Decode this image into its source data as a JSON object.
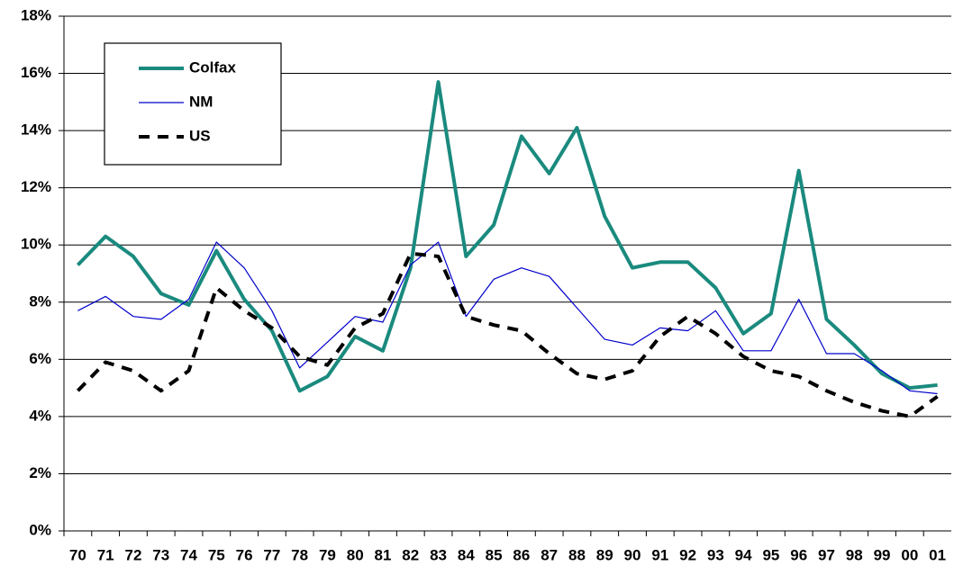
{
  "chart_data": {
    "type": "line",
    "categories": [
      "70",
      "71",
      "72",
      "73",
      "74",
      "75",
      "76",
      "77",
      "78",
      "79",
      "80",
      "81",
      "82",
      "83",
      "84",
      "85",
      "86",
      "87",
      "88",
      "89",
      "90",
      "91",
      "92",
      "93",
      "94",
      "95",
      "96",
      "97",
      "98",
      "99",
      "00",
      "01"
    ],
    "series": [
      {
        "name": "Colfax",
        "color": "#1a8a7e",
        "line_width": 4,
        "dashed": false,
        "values": [
          9.3,
          10.3,
          9.6,
          8.3,
          7.9,
          9.8,
          8.1,
          7.0,
          4.9,
          5.4,
          6.8,
          6.3,
          9.2,
          15.7,
          9.6,
          10.7,
          13.8,
          12.5,
          14.1,
          11.0,
          9.2,
          9.4,
          9.4,
          8.5,
          6.9,
          7.6,
          12.6,
          7.4,
          6.5,
          5.5,
          5.0,
          5.1
        ]
      },
      {
        "name": "NM",
        "color": "#0000cc",
        "line_width": 1.2,
        "dashed": false,
        "values": [
          7.7,
          8.2,
          7.5,
          7.4,
          8.1,
          10.1,
          9.2,
          7.7,
          5.7,
          6.6,
          7.5,
          7.3,
          9.3,
          10.1,
          7.5,
          8.8,
          9.2,
          8.9,
          7.8,
          6.7,
          6.5,
          7.1,
          7.0,
          7.7,
          6.3,
          6.3,
          8.1,
          6.2,
          6.2,
          5.6,
          4.9,
          4.8
        ]
      },
      {
        "name": "US",
        "color": "#000000",
        "line_width": 4,
        "dashed": true,
        "values": [
          4.9,
          5.9,
          5.6,
          4.9,
          5.6,
          8.5,
          7.7,
          7.1,
          6.1,
          5.8,
          7.1,
          7.6,
          9.7,
          9.6,
          7.5,
          7.2,
          7.0,
          6.2,
          5.5,
          5.3,
          5.6,
          6.8,
          7.5,
          6.9,
          6.1,
          5.6,
          5.4,
          4.9,
          4.5,
          4.2,
          4.0,
          4.7
        ]
      }
    ],
    "ylim": [
      0,
      18
    ],
    "yticks": [
      {
        "value": 0,
        "label": "0%"
      },
      {
        "value": 2,
        "label": "2%"
      },
      {
        "value": 4,
        "label": "4%"
      },
      {
        "value": 6,
        "label": "6%"
      },
      {
        "value": 8,
        "label": "8%"
      },
      {
        "value": 10,
        "label": "10%"
      },
      {
        "value": 12,
        "label": "12%"
      },
      {
        "value": 14,
        "label": "14%"
      },
      {
        "value": 16,
        "label": "16%"
      },
      {
        "value": 18,
        "label": "18%"
      }
    ],
    "grid": true,
    "legend": "upper left"
  }
}
